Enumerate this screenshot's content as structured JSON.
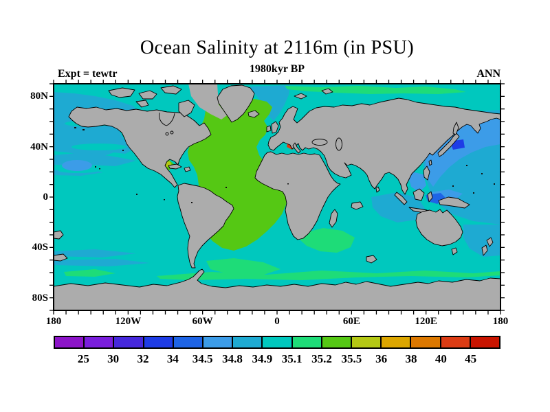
{
  "figure": {
    "title": "Ocean Salinity at 2116m (in PSU)",
    "subtitle": "1980kyr BP",
    "experiment_label": "Expt = tewtr",
    "season_label": "ANN"
  },
  "map": {
    "lat_labels": [
      "80N",
      "40N",
      "0",
      "40S",
      "80S"
    ],
    "lat_values": [
      80,
      40,
      0,
      -40,
      -80
    ],
    "lon_labels": [
      "180",
      "120W",
      "60W",
      "0",
      "60E",
      "120E",
      "180"
    ],
    "land_color": "#acacac",
    "coast_color": "#000000",
    "frame_color": "#000000",
    "ocean_base_color": "#00c8be"
  },
  "colorbar": {
    "labels": [
      "25",
      "30",
      "32",
      "34",
      "34.5",
      "34.8",
      "34.9",
      "35.1",
      "35.2",
      "35.5",
      "36",
      "38",
      "40",
      "45"
    ],
    "colors": [
      "#8c14c8",
      "#7a1edc",
      "#4628dc",
      "#1e3ce6",
      "#1e64e6",
      "#3c9ce8",
      "#1eaad2",
      "#00c8be",
      "#1edc78",
      "#55c814",
      "#b4c814",
      "#dca600",
      "#dc7800",
      "#dc3c14",
      "#c81400"
    ]
  },
  "chart_data": {
    "type": "heatmap",
    "subtype": "filled_contour_world_map",
    "title": "Ocean Salinity at 2116m (in PSU)",
    "units": "PSU",
    "depth_m": 2116,
    "time_label": "1980kyr BP",
    "season": "ANN",
    "experiment": "tewtr",
    "projection": "equirectangular",
    "lon_range": [
      -180,
      180
    ],
    "lat_range": [
      -90,
      90
    ],
    "contour_levels": [
      25,
      30,
      32,
      34,
      34.5,
      34.8,
      34.9,
      35.1,
      35.2,
      35.5,
      36,
      38,
      40,
      45
    ],
    "palette": [
      "#8c14c8",
      "#7a1edc",
      "#4628dc",
      "#1e3ce6",
      "#1e64e6",
      "#3c9ce8",
      "#1eaad2",
      "#00c8be",
      "#1edc78",
      "#55c814",
      "#b4c814",
      "#dca600",
      "#dc7800",
      "#dc3c14",
      "#c81400"
    ],
    "land_color": "#acacac",
    "regions": [
      {
        "name": "North Atlantic (Greenland to ~25S)",
        "approx_value_psu": "35.2-35.5"
      },
      {
        "name": "Mediterranean Sea patches",
        "approx_value_psu": ">40"
      },
      {
        "name": "Sea of Japan",
        "approx_value_psu": "32-34"
      },
      {
        "name": "Northwest Pacific near Japan / South China Sea",
        "approx_value_psu": "34.5-34.8"
      },
      {
        "name": "Banda Sea patch",
        "approx_value_psu": "34-34.5"
      },
      {
        "name": "Northeast Pacific / Gulf of Alaska / Norwegian Sea",
        "approx_value_psu": "34.8-34.9"
      },
      {
        "name": "Background ocean (Indian, South Pacific)",
        "approx_value_psu": "34.9-35.1"
      },
      {
        "name": "Circumpolar Southern Ocean band / Siberian Arctic coast / Agulhas",
        "approx_value_psu": "35.1-35.2"
      },
      {
        "name": "Gulf of Mexico patches",
        "approx_value_psu": "35.2-36"
      }
    ]
  }
}
